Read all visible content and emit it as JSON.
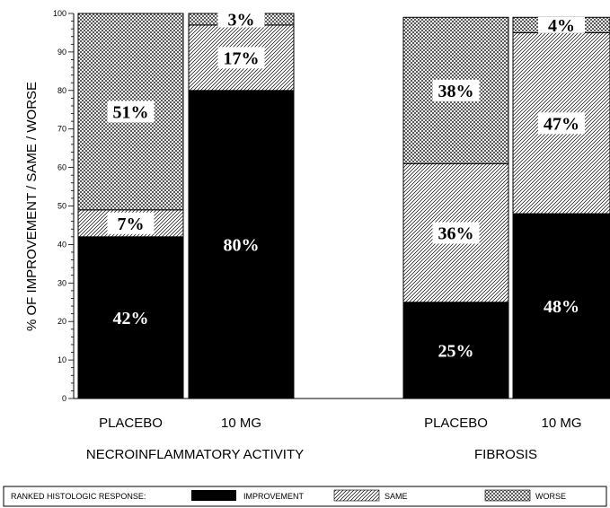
{
  "chart_data": {
    "type": "bar",
    "stacked": true,
    "ylabel": "% OF IMPROVEMENT / SAME / WORSE",
    "ylim": [
      0,
      100
    ],
    "yticks": [
      0,
      10,
      20,
      30,
      40,
      50,
      60,
      70,
      80,
      90,
      100
    ],
    "groups": [
      {
        "name": "NECROINFLAMMATORY ACTIVITY",
        "categories": [
          "PLACEBO",
          "10 MG"
        ]
      },
      {
        "name": "FIBROSIS",
        "categories": [
          "PLACEBO",
          "10 MG"
        ]
      }
    ],
    "categories": [
      "PLACEBO",
      "10 MG",
      "PLACEBO",
      "10 MG"
    ],
    "series": [
      {
        "name": "IMPROVEMENT",
        "values": [
          42,
          80,
          25,
          48
        ],
        "labels": [
          "42%",
          "80%",
          "25%",
          "48%"
        ]
      },
      {
        "name": "SAME",
        "values": [
          7,
          17,
          36,
          47
        ],
        "labels": [
          "7%",
          "17%",
          "36%",
          "47%"
        ]
      },
      {
        "name": "WORSE",
        "values": [
          51,
          3,
          38,
          4
        ],
        "labels": [
          "51%",
          "3%",
          "38%",
          "4%"
        ]
      }
    ],
    "legend": {
      "title": "RANKED HISTOLOGIC RESPONSE:",
      "position": "bottom",
      "items": [
        "IMPROVEMENT",
        "SAME",
        "WORSE"
      ]
    },
    "colors": {
      "improvement": "#000000",
      "background": "#ffffff"
    }
  }
}
